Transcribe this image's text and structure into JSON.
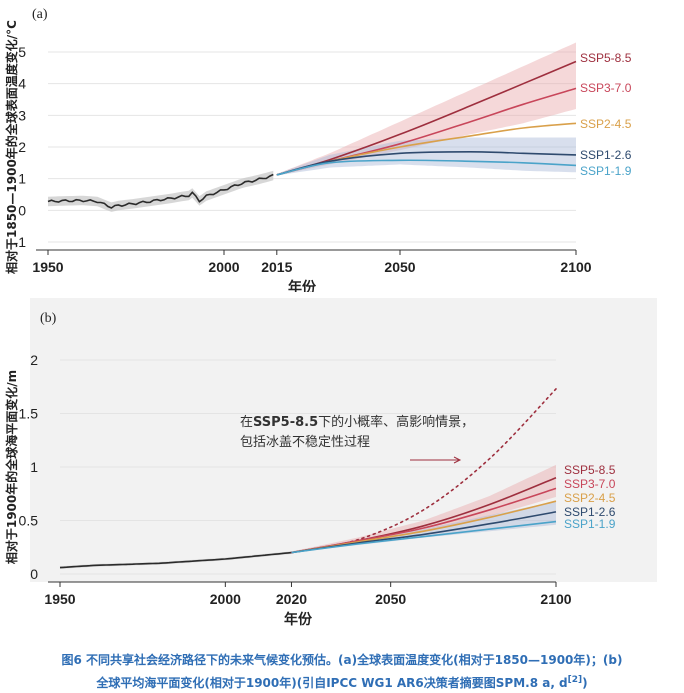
{
  "caption": {
    "line1": "图6 不同共享社会经济路径下的未来气候变化预估。(a)全球表面温度变化(相对于1850—1900年)；(b)",
    "line2": "全球平均海平面变化(相对于1900年)(引自IPCC WG1 AR6决策者摘要图SPM.8 a, d",
    "ref": "[2]",
    "close": ")"
  },
  "colors": {
    "ssp585": "#9e2f3e",
    "ssp370": "#c8465a",
    "ssp245": "#d9a04a",
    "ssp126": "#2e4a6e",
    "ssp119": "#4aa3c9",
    "history": "#2b2b2b",
    "band_high": "#e8a9ab",
    "band_low": "#a9b8d6",
    "band_hist": "#c9c9c9",
    "panel_b_bg": "#f2f2f2"
  },
  "chart_data": [
    {
      "id": "a",
      "type": "line",
      "panel_label": "(a)",
      "title": "",
      "xlabel": "年份",
      "ylabel": "相对于1850—1900年的全球表面温度变化/°C",
      "xlim": [
        1950,
        2100
      ],
      "ylim": [
        -1,
        5
      ],
      "xticks": [
        {
          "value": 1950,
          "label": "1950"
        },
        {
          "value": 2000,
          "label": "2000"
        },
        {
          "value": 2015,
          "label": "2015"
        },
        {
          "value": 2050,
          "label": "2050"
        },
        {
          "value": 2100,
          "label": "2100"
        }
      ],
      "yticks": [
        {
          "value": -1,
          "label": "-1"
        },
        {
          "value": 0,
          "label": "0"
        },
        {
          "value": 1,
          "label": "1"
        },
        {
          "value": 2,
          "label": "2"
        },
        {
          "value": 3,
          "label": "3"
        },
        {
          "value": 4,
          "label": "4"
        },
        {
          "value": 5,
          "label": "5"
        }
      ],
      "grid": true,
      "history": {
        "name": "历史",
        "x": [
          1950,
          1955,
          1960,
          1964,
          1968,
          1970,
          1975,
          1980,
          1985,
          1990,
          1991,
          1993,
          1995,
          2000,
          2005,
          2010,
          2014
        ],
        "y": [
          0.28,
          0.3,
          0.31,
          0.28,
          0.1,
          0.15,
          0.22,
          0.3,
          0.38,
          0.47,
          0.55,
          0.3,
          0.45,
          0.65,
          0.85,
          0.98,
          1.1
        ]
      },
      "history_band": {
        "x": [
          1950,
          2014
        ],
        "spread": 0.15
      },
      "bands": [
        {
          "name": "high-emission range",
          "color_key": "band_high",
          "x": [
            2015,
            2030,
            2050,
            2070,
            2085,
            2100
          ],
          "lower": [
            1.1,
            1.45,
            1.9,
            2.4,
            2.75,
            3.2
          ],
          "upper": [
            1.15,
            1.8,
            2.8,
            3.8,
            4.55,
            5.3
          ]
        },
        {
          "name": "low-emission range",
          "color_key": "band_low",
          "x": [
            2015,
            2030,
            2050,
            2070,
            2085,
            2100
          ],
          "lower": [
            1.1,
            1.35,
            1.45,
            1.35,
            1.25,
            1.2
          ],
          "upper": [
            1.15,
            1.75,
            2.2,
            2.3,
            2.3,
            2.3
          ]
        }
      ],
      "series": [
        {
          "name": "SSP5-8.5",
          "color_key": "ssp585",
          "x": [
            2015,
            2030,
            2050,
            2070,
            2085,
            2100
          ],
          "y": [
            1.12,
            1.6,
            2.4,
            3.3,
            4.0,
            4.7
          ]
        },
        {
          "name": "SSP3-7.0",
          "color_key": "ssp370",
          "x": [
            2015,
            2030,
            2050,
            2070,
            2085,
            2100
          ],
          "y": [
            1.12,
            1.55,
            2.1,
            2.8,
            3.35,
            3.85
          ]
        },
        {
          "name": "SSP2-4.5",
          "color_key": "ssp245",
          "x": [
            2015,
            2030,
            2050,
            2070,
            2085,
            2100
          ],
          "y": [
            1.12,
            1.55,
            2.0,
            2.35,
            2.6,
            2.75
          ]
        },
        {
          "name": "SSP1-2.6",
          "color_key": "ssp126",
          "x": [
            2015,
            2030,
            2050,
            2070,
            2085,
            2100
          ],
          "y": [
            1.12,
            1.55,
            1.8,
            1.85,
            1.8,
            1.75
          ]
        },
        {
          "name": "SSP1-1.9",
          "color_key": "ssp119",
          "x": [
            2015,
            2030,
            2050,
            2070,
            2085,
            2100
          ],
          "y": [
            1.12,
            1.5,
            1.58,
            1.55,
            1.5,
            1.42
          ]
        }
      ],
      "annotation": null
    },
    {
      "id": "b",
      "type": "line",
      "panel_label": "(b)",
      "title": "",
      "xlabel": "年份",
      "ylabel": "相对于1900年的全球海平面变化/m",
      "xlim": [
        1950,
        2100
      ],
      "ylim": [
        0,
        2
      ],
      "xticks": [
        {
          "value": 1950,
          "label": "1950"
        },
        {
          "value": 2000,
          "label": "2000"
        },
        {
          "value": 2020,
          "label": "2020"
        },
        {
          "value": 2050,
          "label": "2050"
        },
        {
          "value": 2100,
          "label": "2100"
        }
      ],
      "yticks": [
        {
          "value": 0,
          "label": "0"
        },
        {
          "value": 0.5,
          "label": "0.5"
        },
        {
          "value": 1,
          "label": "1"
        },
        {
          "value": 1.5,
          "label": "1.5"
        },
        {
          "value": 2,
          "label": "2"
        }
      ],
      "grid": true,
      "history": {
        "name": "历史",
        "x": [
          1950,
          1960,
          1970,
          1980,
          1990,
          2000,
          2010,
          2020
        ],
        "y": [
          0.06,
          0.08,
          0.09,
          0.1,
          0.12,
          0.14,
          0.17,
          0.2
        ]
      },
      "history_band": {
        "x": [
          1950,
          2020
        ],
        "spread": 0.012
      },
      "bands": [
        {
          "name": "high-emission range",
          "color_key": "band_high",
          "x": [
            2020,
            2040,
            2060,
            2080,
            2100
          ],
          "lower": [
            0.2,
            0.29,
            0.4,
            0.54,
            0.72
          ],
          "upper": [
            0.21,
            0.34,
            0.5,
            0.73,
            1.02
          ]
        },
        {
          "name": "low-emission range",
          "color_key": "band_low",
          "x": [
            2020,
            2040,
            2060,
            2080,
            2100
          ],
          "lower": [
            0.2,
            0.27,
            0.34,
            0.4,
            0.46
          ],
          "upper": [
            0.21,
            0.32,
            0.42,
            0.55,
            0.68
          ]
        }
      ],
      "series": [
        {
          "name": "SSP5-8.5",
          "color_key": "ssp585",
          "x": [
            2020,
            2040,
            2060,
            2080,
            2100
          ],
          "y": [
            0.2,
            0.31,
            0.45,
            0.65,
            0.9
          ]
        },
        {
          "name": "SSP3-7.0",
          "color_key": "ssp370",
          "x": [
            2020,
            2040,
            2060,
            2080,
            2100
          ],
          "y": [
            0.2,
            0.31,
            0.43,
            0.6,
            0.8
          ]
        },
        {
          "name": "SSP2-4.5",
          "color_key": "ssp245",
          "x": [
            2020,
            2040,
            2060,
            2080,
            2100
          ],
          "y": [
            0.2,
            0.3,
            0.4,
            0.53,
            0.68
          ]
        },
        {
          "name": "SSP1-2.6",
          "color_key": "ssp126",
          "x": [
            2020,
            2040,
            2060,
            2080,
            2100
          ],
          "y": [
            0.2,
            0.29,
            0.37,
            0.47,
            0.58
          ]
        },
        {
          "name": "SSP1-1.9",
          "color_key": "ssp119",
          "x": [
            2020,
            2040,
            2060,
            2080,
            2100
          ],
          "y": [
            0.2,
            0.28,
            0.35,
            0.42,
            0.49
          ]
        }
      ],
      "dotted_series": {
        "name": "SSP5-8.5 低概率高影响",
        "color_key": "ssp585",
        "x": [
          2020,
          2040,
          2060,
          2080,
          2100
        ],
        "y": [
          0.2,
          0.32,
          0.6,
          1.08,
          1.73
        ]
      },
      "annotation": {
        "line1_pre": "在",
        "line1_bold": "SSP5-8.5",
        "line1_post": "下的小概率、高影响情景，",
        "line2": "包括冰盖不稳定性过程"
      }
    }
  ]
}
